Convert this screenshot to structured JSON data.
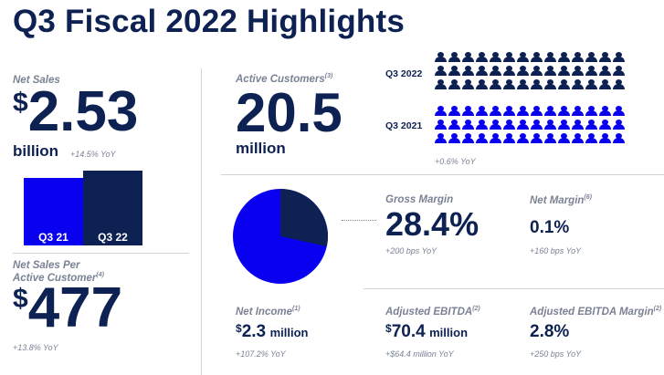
{
  "title": "Q3 Fiscal 2022 Highlights",
  "net_sales": {
    "label": "Net Sales",
    "currency": "$",
    "value": "2.53",
    "unit": "billion",
    "change": "+14.5% YoY",
    "bars": [
      {
        "label": "Q3 21",
        "color": "#0a00f0"
      },
      {
        "label": "Q3 22",
        "color": "#0d2152"
      }
    ]
  },
  "net_sales_per_customer": {
    "label_line1": "Net Sales Per",
    "label_line2": "Active Customer",
    "footnote": "(4)",
    "currency": "$",
    "value": "477",
    "change": "+13.8% YoY"
  },
  "active_customers": {
    "label": "Active Customers",
    "footnote": "(3)",
    "value": "20.5",
    "unit": "million",
    "change": "+0.6% YoY",
    "row1_label": "Q3 2022",
    "row2_label": "Q3 2021",
    "row1_color": "#0d2152",
    "row2_color": "#0a00f0"
  },
  "pie": {
    "colors": {
      "large": "#0a00f0",
      "small": "#0d2152"
    },
    "small_share": 0.284
  },
  "gross_margin": {
    "label": "Gross Margin",
    "value": "28.4%",
    "change": "+200 bps YoY"
  },
  "net_margin": {
    "label": "Net Margin",
    "footnote": "(6)",
    "value": "0.1%",
    "change": "+160 bps YoY"
  },
  "net_income": {
    "label": "Net Income",
    "footnote": "(1)",
    "currency": "$",
    "value": "2.3",
    "unit": "million",
    "change": "+107.2% YoY"
  },
  "adjusted_ebitda": {
    "label": "Adjusted EBITDA",
    "footnote": "(2)",
    "currency": "$",
    "value": "70.4",
    "unit": "million",
    "change": "+$64.4 million YoY"
  },
  "adjusted_ebitda_margin": {
    "label": "Adjusted EBITDA Margin",
    "footnote": "(2)",
    "value": "2.8%",
    "change": "+250 bps YoY"
  }
}
